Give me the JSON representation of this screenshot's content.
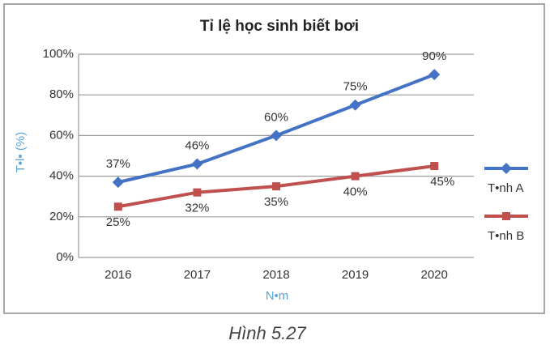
{
  "chart_data": {
    "type": "line",
    "title": "Tỉ lệ học sinh biết bơi",
    "caption": "Hình 5.27",
    "x_label": "N•m",
    "y_label": "T•l• (%)",
    "categories": [
      "2016",
      "2017",
      "2018",
      "2019",
      "2020"
    ],
    "series": [
      {
        "name": "T•nh A",
        "color": "#4472c4",
        "marker": "diamond",
        "values": [
          37,
          46,
          60,
          75,
          90
        ],
        "value_labels": [
          "37%",
          "46%",
          "60%",
          "75%",
          "90%"
        ]
      },
      {
        "name": "T•nh B",
        "color": "#c0504d",
        "marker": "square",
        "values": [
          25,
          32,
          35,
          40,
          45
        ],
        "value_labels": [
          "25%",
          "32%",
          "35%",
          "40%",
          "45%"
        ]
      }
    ],
    "ylim": [
      0,
      100
    ],
    "yticks": [
      {
        "value": 0,
        "label": "0%"
      },
      {
        "value": 20,
        "label": "20%"
      },
      {
        "value": 40,
        "label": "40%"
      },
      {
        "value": 60,
        "label": "60%"
      },
      {
        "value": 80,
        "label": "80%"
      },
      {
        "value": 100,
        "label": "100%"
      }
    ],
    "grid": true,
    "legend": "right"
  }
}
